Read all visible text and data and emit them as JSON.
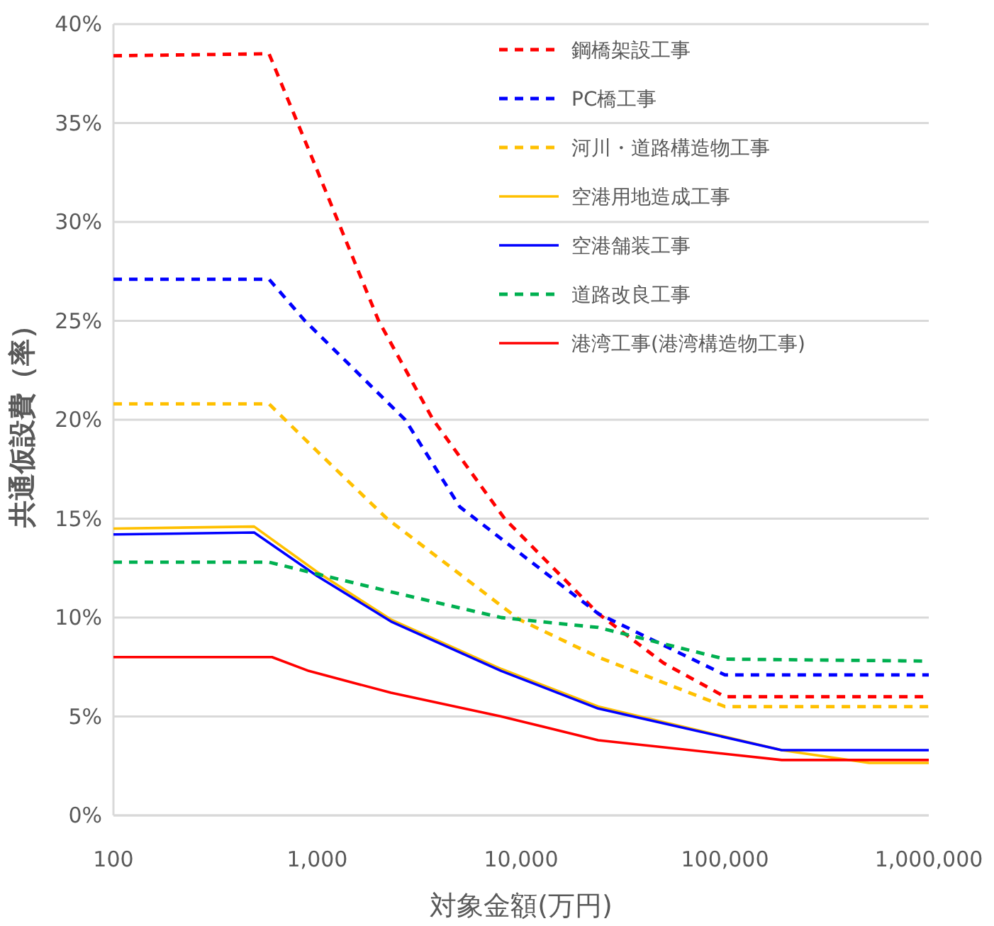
{
  "chart_data": {
    "type": "line",
    "xlabel": "対象金額(万円)",
    "ylabel": "共通仮設費（率）",
    "log": "x",
    "xlim": [
      100,
      1000000
    ],
    "xticks": [
      {
        "value": 100,
        "label": "100"
      },
      {
        "value": 1000,
        "label": "1,000"
      },
      {
        "value": 10000,
        "label": "10,000"
      },
      {
        "value": 100000,
        "label": "100,000"
      },
      {
        "value": 1000000,
        "label": "1,000,000"
      }
    ],
    "ylim": [
      0,
      40
    ],
    "yticks": [
      {
        "value": 0,
        "label": "0%"
      },
      {
        "value": 5,
        "label": "5%"
      },
      {
        "value": 10,
        "label": "10%"
      },
      {
        "value": 15,
        "label": "15%"
      },
      {
        "value": 20,
        "label": "20%"
      },
      {
        "value": 25,
        "label": "25%"
      },
      {
        "value": 30,
        "label": "30%"
      },
      {
        "value": 35,
        "label": "35%"
      },
      {
        "value": 40,
        "label": "40%"
      }
    ],
    "grid": "y",
    "legend": "top right",
    "marker": "none",
    "series": [
      {
        "name": "鋼橋架設工事",
        "color": "#ff0000",
        "line_style": "dashed",
        "x": [
          100,
          580,
          1000,
          2000,
          3700,
          8300,
          23900,
          50000,
          100000,
          1000000
        ],
        "values": [
          38.4,
          38.5,
          32.6,
          25,
          20,
          15,
          10.2,
          7.7,
          6.0,
          6.0
        ]
      },
      {
        "name": "PC橋工事",
        "color": "#0000ff",
        "line_style": "dashed",
        "x": [
          100,
          580,
          870,
          2700,
          5000,
          23900,
          100000,
          1000000
        ],
        "values": [
          27.1,
          27.1,
          25,
          20,
          15.6,
          10.2,
          7.1,
          7.1
        ]
      },
      {
        "name": "河川・道路構造物工事",
        "color": "#ffc000",
        "line_style": "dashed",
        "x": [
          100,
          580,
          1000,
          2200,
          9800,
          23900,
          100000,
          1000000
        ],
        "values": [
          20.8,
          20.8,
          18.4,
          15,
          9.9,
          8.0,
          5.5,
          5.5
        ]
      },
      {
        "name": "空港用地造成工事",
        "color": "#ffc000",
        "line_style": "solid",
        "x": [
          100,
          490,
          1000,
          2300,
          8000,
          23900,
          190000,
          510000,
          1000000
        ],
        "values": [
          14.5,
          14.6,
          12.3,
          9.9,
          7.4,
          5.5,
          3.3,
          2.65,
          2.65
        ]
      },
      {
        "name": "空港舗装工事",
        "color": "#0000ff",
        "line_style": "solid",
        "x": [
          100,
          490,
          1000,
          2300,
          8000,
          23900,
          190000,
          1000000
        ],
        "values": [
          14.2,
          14.3,
          12.1,
          9.8,
          7.3,
          5.4,
          3.3,
          3.3
        ]
      },
      {
        "name": "道路改良工事",
        "color": "#00b050",
        "line_style": "dashed",
        "x": [
          100,
          580,
          1000,
          2300,
          8000,
          23900,
          100000,
          1000000
        ],
        "values": [
          12.8,
          12.8,
          12.2,
          11.3,
          10.0,
          9.5,
          7.9,
          7.8
        ]
      },
      {
        "name": "港湾工事(港湾構造物工事)",
        "color": "#ff0000",
        "line_style": "solid",
        "x": [
          100,
          600,
          910,
          2300,
          8000,
          23900,
          190000,
          1000000
        ],
        "values": [
          8.0,
          8.0,
          7.3,
          6.2,
          5.0,
          3.8,
          2.8,
          2.8
        ]
      }
    ]
  }
}
